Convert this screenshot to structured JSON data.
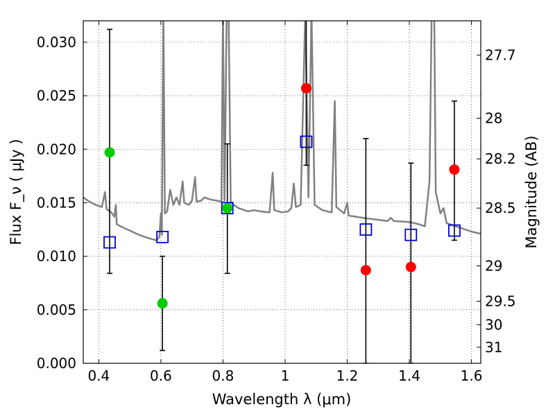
{
  "chart_data": {
    "type": "scatter",
    "xlabel": "Wavelength  λ (μm)",
    "ylabel": "Flux  F_ν  ( μJy )",
    "y2label": "Magnitude (AB)",
    "xlim": [
      0.35,
      1.63
    ],
    "ylim": [
      0.0,
      0.032
    ],
    "grid": true,
    "x_ticks": [
      0.4,
      0.6,
      0.8,
      1.0,
      1.2,
      1.4,
      1.6
    ],
    "x_tick_labels": [
      "0.4",
      "0.6",
      "0.8",
      "1",
      "1.2",
      "1.4",
      "1.6"
    ],
    "y_ticks": [
      0.0,
      0.005,
      0.01,
      0.015,
      0.02,
      0.025,
      0.03
    ],
    "y_tick_labels": [
      "0.000",
      "0.005",
      "0.010",
      "0.015",
      "0.020",
      "0.025",
      "0.030"
    ],
    "y2_ticks": [
      {
        "flux": 0.0288,
        "label": "27.7"
      },
      {
        "flux": 0.0229,
        "label": "28"
      },
      {
        "flux": 0.0191,
        "label": "28.2"
      },
      {
        "flux": 0.0145,
        "label": "28.5"
      },
      {
        "flux": 0.0091,
        "label": "29"
      },
      {
        "flux": 0.0058,
        "label": "29.5"
      },
      {
        "flux": 0.0036,
        "label": "30"
      },
      {
        "flux": 0.0015,
        "label": "31"
      }
    ],
    "series": [
      {
        "kind": "errorbar",
        "color": "#000000",
        "points": [
          {
            "x": 0.435,
            "low": 0.0084,
            "high": 0.0312
          },
          {
            "x": 0.605,
            "low": 0.0012,
            "high": 0.01
          },
          {
            "x": 0.814,
            "low": 0.0084,
            "high": 0.0205
          },
          {
            "x": 1.068,
            "low": 0.0185,
            "high": 0.033
          },
          {
            "x": 1.26,
            "low": 0.0,
            "high": 0.021
          },
          {
            "x": 1.405,
            "low": 0.0,
            "high": 0.0187
          },
          {
            "x": 1.545,
            "low": 0.0115,
            "high": 0.0245
          }
        ]
      },
      {
        "kind": "green-points",
        "color": "#00cc00",
        "points": [
          {
            "x": 0.435,
            "y": 0.0197
          },
          {
            "x": 0.605,
            "y": 0.0056
          },
          {
            "x": 0.814,
            "y": 0.0145
          }
        ]
      },
      {
        "kind": "red-points",
        "color": "#ff0000",
        "points": [
          {
            "x": 1.068,
            "y": 0.0257
          },
          {
            "x": 1.26,
            "y": 0.0087
          },
          {
            "x": 1.405,
            "y": 0.009
          },
          {
            "x": 1.545,
            "y": 0.0181
          }
        ]
      },
      {
        "kind": "model-squares",
        "color": "#0000cc",
        "points": [
          {
            "x": 0.435,
            "y": 0.0113
          },
          {
            "x": 0.605,
            "y": 0.0118
          },
          {
            "x": 0.814,
            "y": 0.0145
          },
          {
            "x": 1.068,
            "y": 0.0207
          },
          {
            "x": 1.26,
            "y": 0.0125
          },
          {
            "x": 1.405,
            "y": 0.012
          },
          {
            "x": 1.545,
            "y": 0.0124
          }
        ]
      },
      {
        "kind": "spectrum",
        "color": "#808080",
        "points": [
          [
            0.35,
            0.0155
          ],
          [
            0.37,
            0.0151
          ],
          [
            0.39,
            0.0148
          ],
          [
            0.41,
            0.0146
          ],
          [
            0.42,
            0.016
          ],
          [
            0.425,
            0.0144
          ],
          [
            0.44,
            0.0141
          ],
          [
            0.45,
            0.0137
          ],
          [
            0.455,
            0.0148
          ],
          [
            0.458,
            0.013
          ],
          [
            0.47,
            0.0128
          ],
          [
            0.5,
            0.0124
          ],
          [
            0.53,
            0.012
          ],
          [
            0.56,
            0.0117
          ],
          [
            0.585,
            0.0115
          ],
          [
            0.595,
            0.0118
          ],
          [
            0.6,
            0.014
          ],
          [
            0.603,
            0.012
          ],
          [
            0.608,
            0.033
          ],
          [
            0.613,
            0.014
          ],
          [
            0.62,
            0.0142
          ],
          [
            0.63,
            0.0162
          ],
          [
            0.64,
            0.0148
          ],
          [
            0.65,
            0.0155
          ],
          [
            0.66,
            0.0148
          ],
          [
            0.67,
            0.017
          ],
          [
            0.675,
            0.015
          ],
          [
            0.69,
            0.0148
          ],
          [
            0.7,
            0.0152
          ],
          [
            0.71,
            0.0174
          ],
          [
            0.715,
            0.0151
          ],
          [
            0.73,
            0.0152
          ],
          [
            0.74,
            0.0155
          ],
          [
            0.76,
            0.0153
          ],
          [
            0.78,
            0.0152
          ],
          [
            0.795,
            0.0151
          ],
          [
            0.8,
            0.033
          ],
          [
            0.805,
            0.0152
          ],
          [
            0.812,
            0.033
          ],
          [
            0.818,
            0.033
          ],
          [
            0.825,
            0.015
          ],
          [
            0.85,
            0.0145
          ],
          [
            0.88,
            0.0142
          ],
          [
            0.9,
            0.0143
          ],
          [
            0.92,
            0.0142
          ],
          [
            0.95,
            0.0141
          ],
          [
            0.96,
            0.0178
          ],
          [
            0.965,
            0.0143
          ],
          [
            0.99,
            0.0141
          ],
          [
            1.01,
            0.0142
          ],
          [
            1.02,
            0.0145
          ],
          [
            1.028,
            0.0168
          ],
          [
            1.035,
            0.0146
          ],
          [
            1.05,
            0.0148
          ],
          [
            1.065,
            0.033
          ],
          [
            1.075,
            0.0155
          ],
          [
            1.085,
            0.033
          ],
          [
            1.095,
            0.0148
          ],
          [
            1.12,
            0.0143
          ],
          [
            1.15,
            0.0141
          ],
          [
            1.16,
            0.0245
          ],
          [
            1.165,
            0.0146
          ],
          [
            1.19,
            0.014
          ],
          [
            1.2,
            0.015
          ],
          [
            1.205,
            0.0138
          ],
          [
            1.25,
            0.0136
          ],
          [
            1.3,
            0.0134
          ],
          [
            1.33,
            0.0133
          ],
          [
            1.34,
            0.0136
          ],
          [
            1.35,
            0.0133
          ],
          [
            1.4,
            0.0132
          ],
          [
            1.43,
            0.013
          ],
          [
            1.45,
            0.0128
          ],
          [
            1.465,
            0.017
          ],
          [
            1.472,
            0.033
          ],
          [
            1.48,
            0.033
          ],
          [
            1.485,
            0.016
          ],
          [
            1.5,
            0.014
          ],
          [
            1.51,
            0.0145
          ],
          [
            1.52,
            0.0131
          ],
          [
            1.55,
            0.0128
          ],
          [
            1.58,
            0.0125
          ],
          [
            1.6,
            0.0123
          ],
          [
            1.63,
            0.0121
          ]
        ]
      }
    ]
  }
}
